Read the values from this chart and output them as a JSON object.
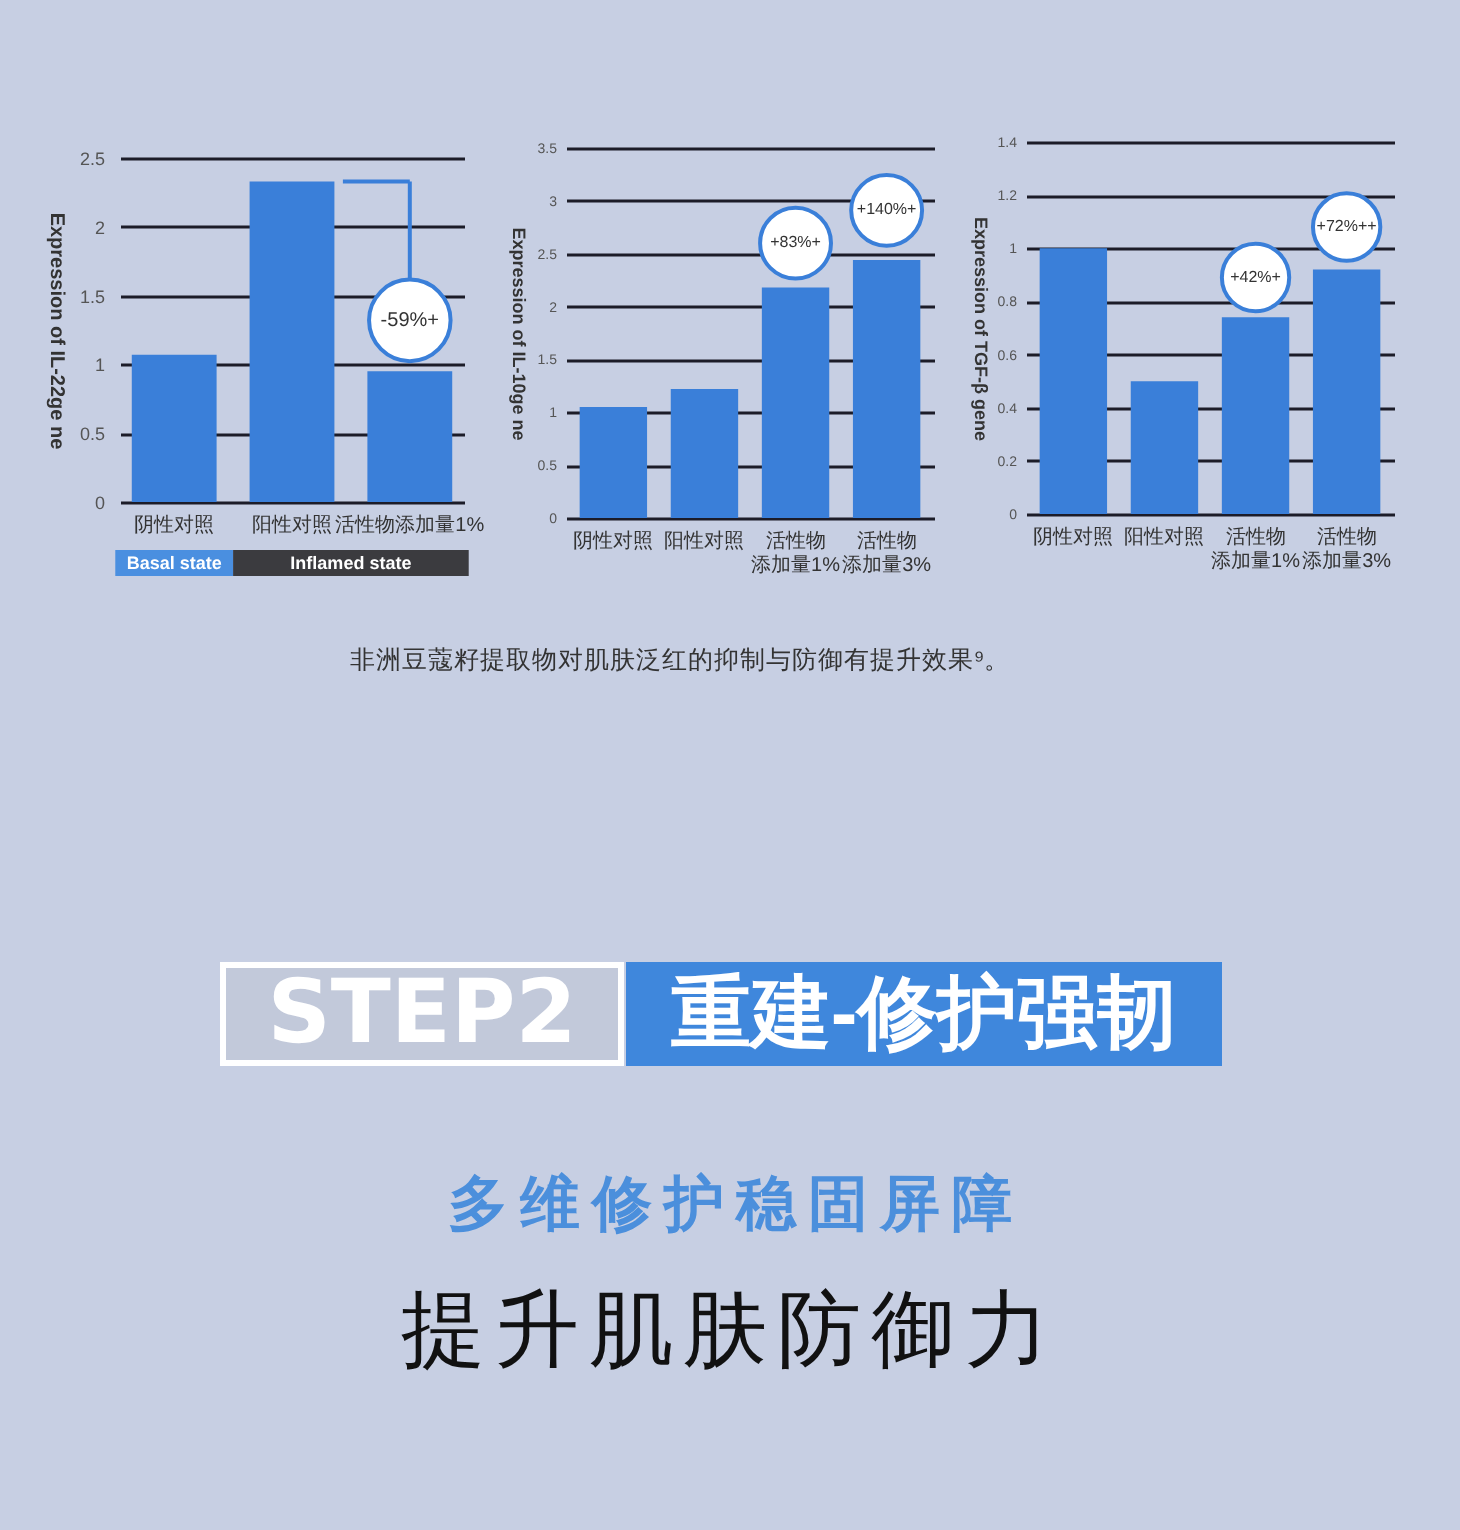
{
  "chart_data": [
    {
      "type": "bar",
      "ylabel": "Expression of IL-22ge ne",
      "categories": [
        "阴性对照",
        "阳性对照",
        "活性物添加量1%"
      ],
      "values": [
        1.07,
        2.33,
        0.95
      ],
      "color": "#3a7fd9",
      "ylim": [
        0,
        2.5
      ],
      "yticks": [
        0,
        0.5,
        1,
        1.5,
        2,
        2.5
      ],
      "grid": "y",
      "annotations": [
        {
          "text": "-59%+",
          "x": "活性物添加量1%",
          "y": 1.32
        },
        "Basal state",
        "Inflamed state"
      ]
    },
    {
      "type": "bar",
      "ylabel": "Expression of IL-10ge ne",
      "categories": [
        "阴性对照",
        "阳性对照",
        "活性物添加量1%",
        "活性物添加量3%"
      ],
      "values": [
        1.05,
        1.22,
        2.18,
        2.44
      ],
      "color": "#3a7fd9",
      "ylim": [
        0,
        3.5
      ],
      "yticks": [
        0,
        0.5,
        1,
        1.5,
        2,
        2.5,
        3,
        3.5
      ],
      "grid": "y",
      "annotations": [
        {
          "text": "+83%+",
          "x": "活性物添加量1%",
          "y": 2.6
        },
        {
          "text": "+140%+",
          "x": "活性物添加量3%",
          "y": 2.91
        }
      ]
    },
    {
      "type": "bar",
      "ylabel": "Expression of TGF-β gene",
      "categories": [
        "阴性对照",
        "阳性对照",
        "活性物添加量1%",
        "活性物添加量3%"
      ],
      "values": [
        1,
        0.5,
        0.74,
        0.92
      ],
      "color": "#3a7fd9",
      "ylim": [
        0,
        1.4
      ],
      "yticks": [
        0,
        0.2,
        0.4,
        0.6,
        0.8,
        1,
        1.2,
        1.4
      ],
      "grid": "y",
      "annotations": [
        {
          "text": "+42%+",
          "x": "活性物添加量1%",
          "y": 0.89
        },
        {
          "text": "+72%++",
          "x": "活性物添加量3%",
          "y": 1.08
        }
      ]
    },
    {
      "type": "other",
      "annotations": [
        "非洲豆蔻籽提取物对肌肤泛红的抑制与防御有提升效果⁹。",
        "STEP2",
        "重建-修护强韧",
        "多维修护稳固屏障",
        "提升肌肤防御力"
      ]
    }
  ]
}
